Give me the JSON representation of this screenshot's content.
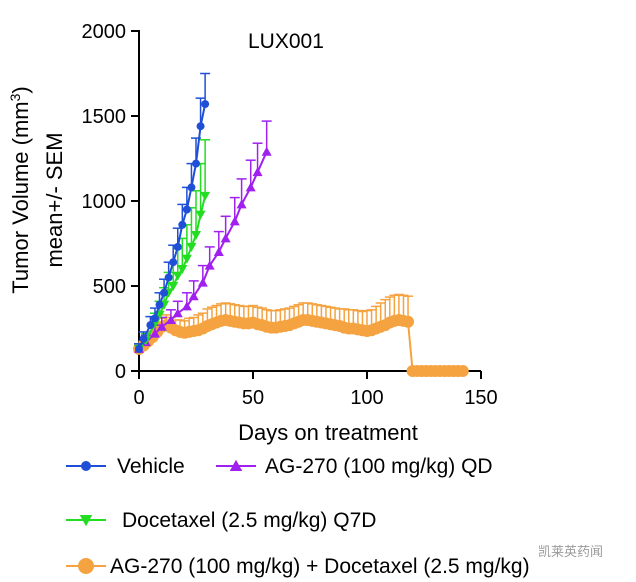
{
  "chart_data": {
    "type": "line",
    "title": "LUX001",
    "xlabel": "Days on treatment",
    "ylabel_line1": "Tumor Volume (mm",
    "ylabel_sup": "3",
    "ylabel_line1_end": ")",
    "ylabel_line2": "mean+/- SEM",
    "xlim": [
      0,
      150
    ],
    "ylim": [
      0,
      2000
    ],
    "xticks": [
      0,
      50,
      100,
      150
    ],
    "yticks": [
      0,
      500,
      1000,
      1500,
      2000
    ],
    "series": [
      {
        "name": "Vehicle",
        "color": "#1f4fd6",
        "marker": "circle",
        "x": [
          0,
          2,
          5,
          7,
          9,
          11,
          13,
          15,
          17,
          19,
          21,
          23,
          25,
          27,
          29
        ],
        "y": [
          130,
          190,
          270,
          310,
          390,
          460,
          550,
          640,
          730,
          860,
          950,
          1080,
          1220,
          1440,
          1570
        ],
        "err": [
          30,
          40,
          50,
          60,
          70,
          80,
          90,
          100,
          110,
          120,
          130,
          140,
          150,
          165,
          180
        ]
      },
      {
        "name": "AG-270 (100 mg/kg) QD",
        "color": "#a020f0",
        "marker": "triangle-up",
        "x": [
          0,
          3,
          7,
          10,
          14,
          17,
          21,
          24,
          28,
          31,
          35,
          38,
          42,
          45,
          49,
          52,
          56
        ],
        "y": [
          130,
          170,
          220,
          260,
          300,
          340,
          380,
          440,
          520,
          620,
          700,
          780,
          880,
          980,
          1080,
          1170,
          1290
        ],
        "err": [
          30,
          40,
          50,
          55,
          60,
          70,
          80,
          90,
          100,
          110,
          120,
          130,
          140,
          150,
          160,
          170,
          180
        ]
      },
      {
        "name": "Docetaxel (2.5 mg/kg) Q7D",
        "color": "#22dd22",
        "marker": "triangle-down",
        "x": [
          0,
          3,
          7,
          9,
          11,
          13,
          15,
          17,
          19,
          21,
          23,
          25,
          27,
          29
        ],
        "y": [
          130,
          180,
          280,
          330,
          390,
          460,
          500,
          560,
          600,
          660,
          730,
          800,
          920,
          1030
        ],
        "err": [
          30,
          40,
          60,
          80,
          100,
          120,
          140,
          160,
          180,
          200,
          230,
          260,
          300,
          330
        ]
      },
      {
        "name": "AG-270 (100 mg/kg) + Docetaxel (2.5 mg/kg)",
        "color": "#f5a340",
        "marker": "circle",
        "x": [
          0,
          2,
          4,
          6,
          8,
          10,
          12,
          14,
          16,
          18,
          20,
          22,
          24,
          26,
          28,
          30,
          32,
          34,
          36,
          38,
          40,
          42,
          44,
          46,
          48,
          50,
          52,
          54,
          56,
          58,
          60,
          62,
          64,
          66,
          68,
          70,
          72,
          74,
          76,
          78,
          80,
          82,
          84,
          86,
          88,
          90,
          92,
          94,
          96,
          98,
          100,
          102,
          104,
          106,
          108,
          110,
          112,
          114,
          116,
          118,
          120,
          122,
          124,
          126,
          128,
          130,
          132,
          134,
          136,
          138,
          140,
          142
        ],
        "y": [
          130,
          150,
          175,
          200,
          230,
          260,
          270,
          255,
          240,
          230,
          225,
          230,
          235,
          240,
          250,
          265,
          275,
          285,
          295,
          300,
          295,
          290,
          285,
          280,
          280,
          285,
          275,
          270,
          260,
          255,
          255,
          260,
          265,
          270,
          280,
          290,
          300,
          300,
          295,
          290,
          285,
          280,
          275,
          270,
          265,
          255,
          250,
          250,
          245,
          240,
          235,
          240,
          250,
          260,
          270,
          285,
          295,
          300,
          295,
          290,
          0,
          0,
          0,
          0,
          0,
          0,
          0,
          0,
          0,
          0,
          0,
          0
        ],
        "err": [
          20,
          25,
          30,
          35,
          40,
          50,
          60,
          60,
          60,
          70,
          70,
          80,
          80,
          90,
          90,
          100,
          100,
          100,
          100,
          100,
          100,
          100,
          100,
          100,
          100,
          100,
          100,
          100,
          100,
          100,
          100,
          100,
          100,
          100,
          100,
          100,
          100,
          100,
          100,
          100,
          100,
          100,
          100,
          100,
          100,
          110,
          110,
          110,
          110,
          110,
          120,
          120,
          130,
          140,
          150,
          150,
          150,
          150,
          150,
          150,
          0,
          0,
          0,
          0,
          0,
          0,
          0,
          0,
          0,
          0,
          0,
          0
        ]
      }
    ]
  },
  "watermark": "凯莱英药闻"
}
